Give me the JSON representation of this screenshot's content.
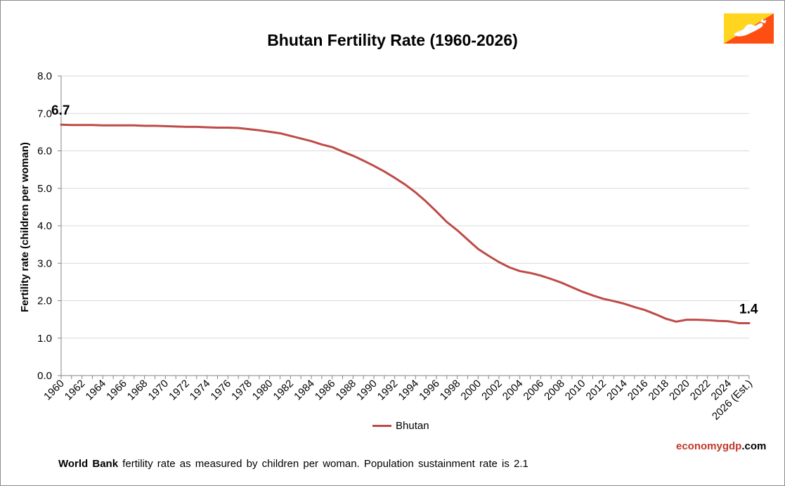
{
  "title": "Bhutan Fertility Rate (1960-2026)",
  "brand": {
    "part1": "economy",
    "part2": "gdp",
    "part3": ".com"
  },
  "footnote": {
    "source": "World Bank",
    "text": " fertility rate as measured by children per woman.  Population sustainment rate is 2.1"
  },
  "flag": {
    "name": "bhutan-flag-icon",
    "colors": {
      "yellow": "#ffd520",
      "orange": "#ff4e12",
      "dragon": "#ffffff"
    }
  },
  "chart_data": {
    "type": "line",
    "title": "Bhutan Fertility Rate (1960-2026)",
    "xlabel": "",
    "ylabel": "Fertility rate (children per woman)",
    "ylim": [
      0,
      8
    ],
    "yticks": [
      "0.0",
      "1.0",
      "2.0",
      "3.0",
      "4.0",
      "5.0",
      "6.0",
      "7.0",
      "8.0"
    ],
    "grid": true,
    "legend": "bottom",
    "x": [
      "1960",
      "1961",
      "1962",
      "1963",
      "1964",
      "1965",
      "1966",
      "1967",
      "1968",
      "1969",
      "1970",
      "1971",
      "1972",
      "1973",
      "1974",
      "1975",
      "1976",
      "1977",
      "1978",
      "1979",
      "1980",
      "1981",
      "1982",
      "1983",
      "1984",
      "1985",
      "1986",
      "1987",
      "1988",
      "1989",
      "1990",
      "1991",
      "1992",
      "1993",
      "1994",
      "1995",
      "1996",
      "1997",
      "1998",
      "1999",
      "2000",
      "2001",
      "2002",
      "2003",
      "2004",
      "2005",
      "2006",
      "2007",
      "2008",
      "2009",
      "2010",
      "2011",
      "2012",
      "2013",
      "2014",
      "2015",
      "2016",
      "2017",
      "2018",
      "2019",
      "2020",
      "2021",
      "2022",
      "2023",
      "2024",
      "2025",
      "2026 (Est.)"
    ],
    "xtick_labels": [
      "1960",
      "1962",
      "1964",
      "1966",
      "1968",
      "1970",
      "1972",
      "1974",
      "1976",
      "1978",
      "1980",
      "1982",
      "1984",
      "1986",
      "1988",
      "1990",
      "1992",
      "1994",
      "1996",
      "1998",
      "2000",
      "2002",
      "2004",
      "2006",
      "2008",
      "2010",
      "2012",
      "2014",
      "2016",
      "2018",
      "2020",
      "2022",
      "2024",
      "2026 (Est.)"
    ],
    "series": [
      {
        "name": "Bhutan",
        "color": "#be4b48",
        "values": [
          6.7,
          6.69,
          6.69,
          6.69,
          6.68,
          6.68,
          6.68,
          6.68,
          6.67,
          6.67,
          6.66,
          6.65,
          6.64,
          6.64,
          6.63,
          6.62,
          6.62,
          6.61,
          6.58,
          6.55,
          6.51,
          6.47,
          6.4,
          6.33,
          6.26,
          6.17,
          6.1,
          5.98,
          5.87,
          5.74,
          5.6,
          5.45,
          5.28,
          5.1,
          4.89,
          4.65,
          4.38,
          4.1,
          3.88,
          3.63,
          3.38,
          3.2,
          3.03,
          2.89,
          2.79,
          2.74,
          2.67,
          2.58,
          2.48,
          2.36,
          2.24,
          2.14,
          2.05,
          1.99,
          1.92,
          1.83,
          1.75,
          1.64,
          1.52,
          1.44,
          1.49,
          1.49,
          1.48,
          1.46,
          1.45,
          1.4,
          1.4
        ]
      }
    ],
    "annotations": [
      {
        "text": "6.7",
        "at": "1960"
      },
      {
        "text": "1.4",
        "at": "2026 (Est.)"
      }
    ]
  }
}
